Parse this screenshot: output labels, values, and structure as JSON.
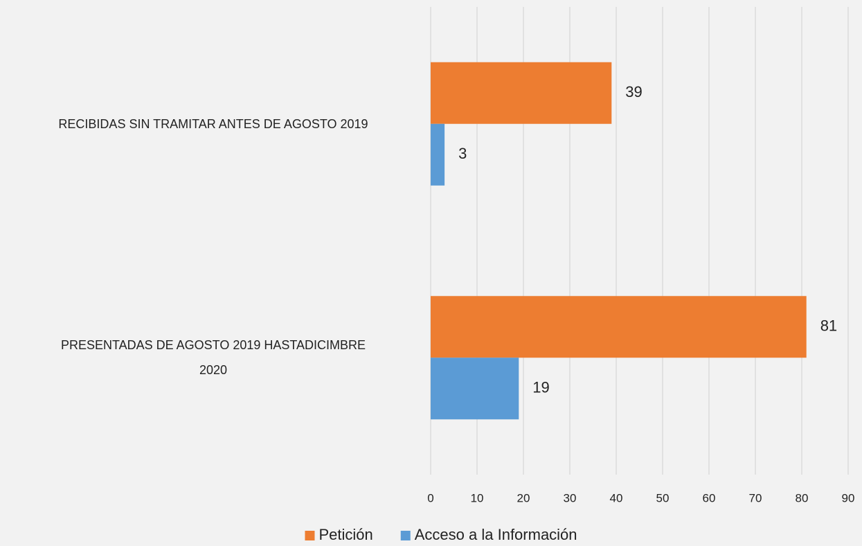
{
  "chart_data": {
    "type": "hbar",
    "categories": [
      "RECIBIDAS SIN TRAMITAR ANTES DE AGOSTO 2019",
      "PRESENTADAS DE AGOSTO 2019 HASTADICIMBRE 2020"
    ],
    "series": [
      {
        "name": "Petición",
        "color": "#ed7d31",
        "values": [
          39,
          81
        ]
      },
      {
        "name": "Acceso a la Información",
        "color": "#5b9bd5",
        "values": [
          3,
          19
        ]
      }
    ],
    "xlim": [
      0,
      90
    ],
    "xticks": [
      0,
      10,
      20,
      30,
      40,
      50,
      60,
      70,
      80,
      90
    ],
    "grid": true,
    "legend": "bottom"
  }
}
